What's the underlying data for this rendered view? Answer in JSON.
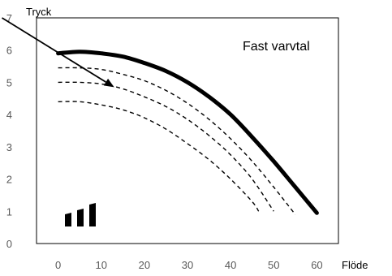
{
  "chart_data": {
    "type": "line",
    "xlabel": "Flöde",
    "ylabel": "Tryck",
    "xlim": [
      -5,
      65
    ],
    "ylim": [
      0,
      7
    ],
    "x_ticks": [
      0,
      10,
      20,
      30,
      40,
      50,
      60
    ],
    "y_ticks": [
      0,
      1,
      2,
      3,
      4,
      5,
      6,
      7
    ],
    "annotation": "Fast varvtal",
    "grid": false,
    "series": [
      {
        "style": "solid",
        "points": [
          [
            0,
            5.9
          ],
          [
            5,
            5.95
          ],
          [
            10,
            5.9
          ],
          [
            15,
            5.8
          ],
          [
            20,
            5.6
          ],
          [
            25,
            5.35
          ],
          [
            30,
            5.0
          ],
          [
            35,
            4.55
          ],
          [
            40,
            4.0
          ],
          [
            45,
            3.3
          ],
          [
            50,
            2.55
          ],
          [
            55,
            1.75
          ],
          [
            60,
            0.95
          ]
        ]
      },
      {
        "style": "dashed",
        "points": [
          [
            0,
            5.45
          ],
          [
            5,
            5.45
          ],
          [
            10,
            5.4
          ],
          [
            15,
            5.25
          ],
          [
            20,
            5.05
          ],
          [
            25,
            4.75
          ],
          [
            30,
            4.35
          ],
          [
            35,
            3.85
          ],
          [
            40,
            3.25
          ],
          [
            45,
            2.55
          ],
          [
            50,
            1.75
          ],
          [
            55,
            0.9
          ]
        ]
      },
      {
        "style": "dashed",
        "points": [
          [
            0,
            5.0
          ],
          [
            5,
            5.0
          ],
          [
            10,
            4.95
          ],
          [
            15,
            4.8
          ],
          [
            20,
            4.55
          ],
          [
            25,
            4.25
          ],
          [
            30,
            3.85
          ],
          [
            35,
            3.35
          ],
          [
            40,
            2.75
          ],
          [
            45,
            2.0
          ],
          [
            50,
            1.0
          ]
        ]
      },
      {
        "style": "dashed",
        "points": [
          [
            0,
            4.4
          ],
          [
            5,
            4.4
          ],
          [
            10,
            4.3
          ],
          [
            15,
            4.15
          ],
          [
            20,
            3.9
          ],
          [
            25,
            3.55
          ],
          [
            30,
            3.1
          ],
          [
            35,
            2.6
          ],
          [
            40,
            2.0
          ],
          [
            45,
            1.3
          ],
          [
            46.5,
            1.0
          ]
        ]
      }
    ],
    "arrow": {
      "from": [
        -13,
        7
      ],
      "to": [
        13,
        4.85
      ]
    }
  }
}
